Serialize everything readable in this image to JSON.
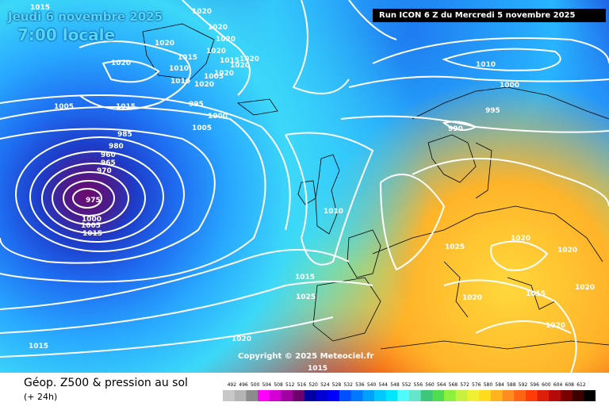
{
  "header": {
    "date": "Jeudi 6 novembre 2025",
    "time": "7:00 locale",
    "run": "Run ICON 6 Z du Mercredi 5 novembre 2025"
  },
  "map": {
    "copyright": "Copyright © 2025 Meteociel.fr",
    "isobar_color": "#ffffff",
    "pressure_labels": [
      "1015",
      "1020",
      "1020",
      "1020",
      "1020",
      "1020",
      "1020",
      "1015",
      "1020",
      "1010",
      "1020",
      "1020",
      "1015",
      "1010",
      "1005",
      "1020",
      "1005",
      "1015",
      "995",
      "1000",
      "1005",
      "1010",
      "1000",
      "995",
      "990",
      "985",
      "980",
      "960",
      "965",
      "970",
      "975",
      "1000",
      "1005",
      "1015",
      "1010",
      "1015",
      "1025",
      "1025",
      "1020",
      "1020",
      "1020",
      "1015",
      "1020",
      "1020",
      "1015",
      "1020",
      "1015"
    ]
  },
  "footer": {
    "title": "Géop. Z500 & pression au sol",
    "subtitle": "(+ 24h)"
  },
  "legend": {
    "ticks": [
      "492",
      "496",
      "500",
      "504",
      "508",
      "512",
      "516",
      "520",
      "524",
      "528",
      "532",
      "536",
      "540",
      "544",
      "548",
      "552",
      "556",
      "560",
      "564",
      "568",
      "572",
      "576",
      "580",
      "584",
      "588",
      "592",
      "596",
      "600",
      "604",
      "608",
      "612"
    ],
    "colors": [
      "#c8c8c8",
      "#b4b4b4",
      "#8c8c8c",
      "#ff00ff",
      "#d200d2",
      "#a000a0",
      "#6e006e",
      "#0000a0",
      "#0000d2",
      "#0000ff",
      "#0050ff",
      "#0078ff",
      "#00a0ff",
      "#00c8ff",
      "#00e6ff",
      "#50fafa",
      "#64e6c8",
      "#3cc878",
      "#50dc50",
      "#8cf03c",
      "#c8f03c",
      "#f0f032",
      "#ffdc1e",
      "#ffb41e",
      "#ff8c1e",
      "#ff6414",
      "#ff3c0a",
      "#dc1e0a",
      "#b40a0a",
      "#780000",
      "#3c0000",
      "#000000"
    ]
  }
}
